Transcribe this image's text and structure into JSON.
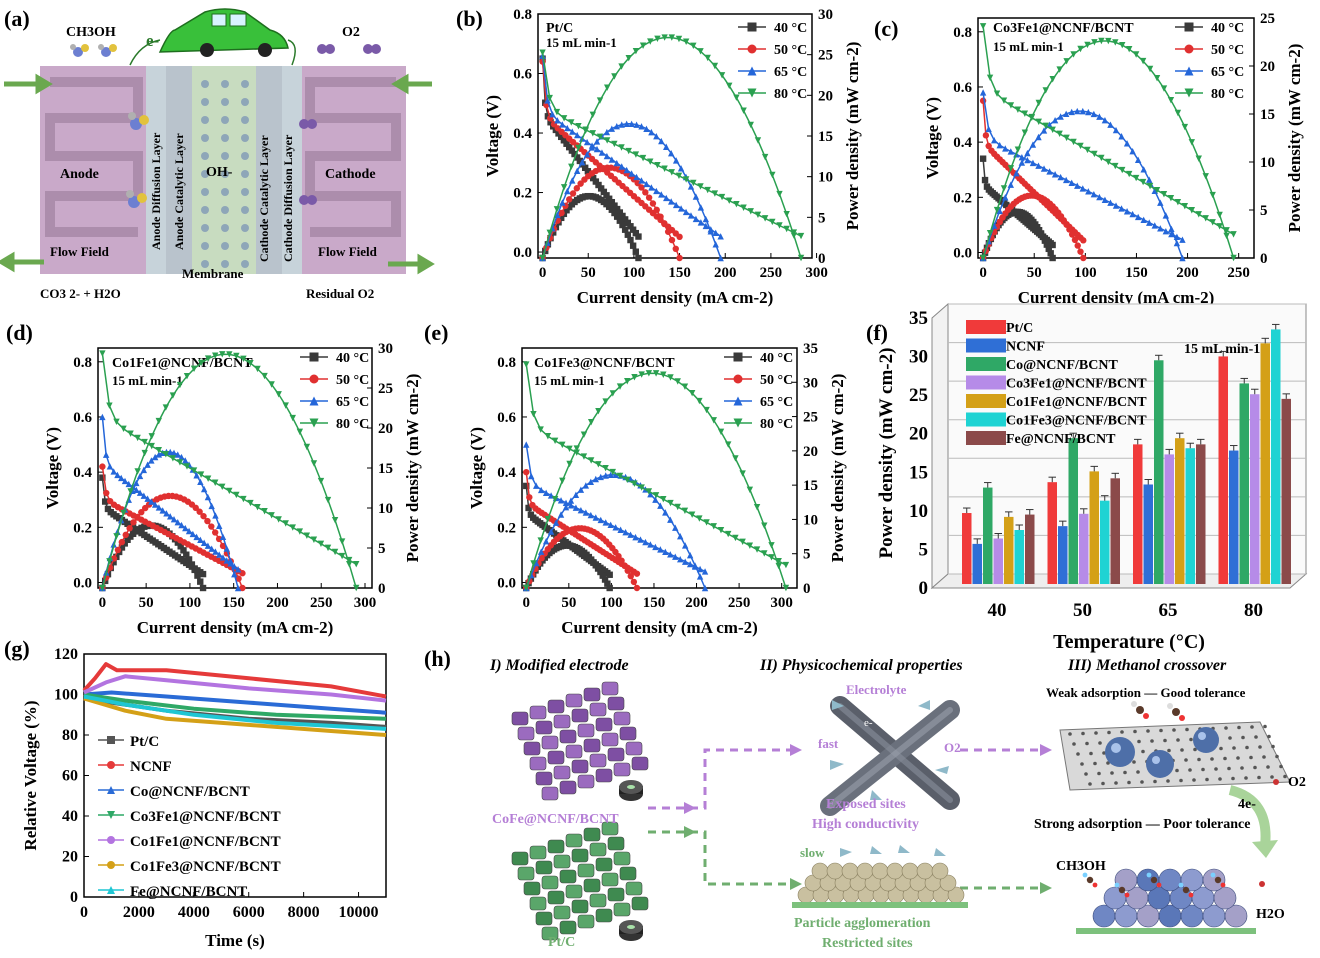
{
  "panel_labels": {
    "a": "(a)",
    "b": "(b)",
    "c": "(c)",
    "d": "(d)",
    "e": "(e)",
    "f": "(f)",
    "g": "(g)",
    "h": "(h)"
  },
  "schematic_a": {
    "methanol": "CH3OH",
    "electron": "e-",
    "oxygen": "O2",
    "anode": "Anode",
    "cathode": "Cathode",
    "oh": "OH-",
    "anode_flow": "Flow Field",
    "cathode_flow": "Flow Field",
    "membrane": "Membrane",
    "anode_diffusion": "Anode Diffusion Layer",
    "anode_catalytic": "Anode Catalytic Layer",
    "cathode_catalytic": "Cathode Catalytic Layer",
    "cathode_diffusion": "Cathode Diffusion Layer",
    "products": "CO3 2- + H2O",
    "residual": "Residual O2",
    "colors": {
      "flow": "#c9a9c9",
      "layer": "#c7d3da",
      "membrane": "#c8dcc0",
      "arrow": "#6aa84f",
      "car": "#39c03a"
    }
  },
  "legend_temps": [
    "40 °C",
    "50 °C",
    "65 °C",
    "80 °C"
  ],
  "temp_colors": [
    "#3a3a3a",
    "#e03030",
    "#2466d9",
    "#2aa050"
  ],
  "chart_data": [
    {
      "id": "b",
      "type": "line",
      "title": "Pt/C",
      "flow": "15 mL min-1",
      "xlabel": "Current density (mA cm-2)",
      "ylabel": "Voltage (V)",
      "y2label": "Power density (mW cm-2)",
      "xlim": [
        -5,
        295
      ],
      "ylim": [
        -0.02,
        0.8
      ],
      "y2lim": [
        0,
        30
      ],
      "xticks": [
        0,
        50,
        100,
        150,
        200,
        250,
        300
      ],
      "yticks": [
        0,
        0.2,
        0.4,
        0.6,
        0.8
      ],
      "y2ticks": [
        0,
        5,
        10,
        15,
        20,
        25,
        30
      ],
      "series": [
        {
          "name": "40 °C",
          "jmax": 105,
          "v0": 0.65,
          "pmax": 7.6
        },
        {
          "name": "50 °C",
          "jmax": 150,
          "v0": 0.64,
          "pmax": 11.1
        },
        {
          "name": "65 °C",
          "jmax": 195,
          "v0": 0.66,
          "pmax": 16.5
        },
        {
          "name": "80 °C",
          "jmax": 283,
          "v0": 0.67,
          "pmax": 27.1
        }
      ]
    },
    {
      "id": "c",
      "type": "line",
      "title": "Co3Fe1@NCNF/BCNT",
      "flow": "15 mL min-1",
      "xlabel": "Current density (mA cm-2)",
      "ylabel": "Voltage (V)",
      "y2label": "Power density (mW cm-2)",
      "xlim": [
        -5,
        265
      ],
      "ylim": [
        -0.02,
        0.85
      ],
      "y2lim": [
        0,
        25
      ],
      "xticks": [
        0,
        50,
        100,
        150,
        200,
        250
      ],
      "yticks": [
        0,
        0.2,
        0.4,
        0.6,
        0.8
      ],
      "y2ticks": [
        0,
        5,
        10,
        15,
        20,
        25
      ],
      "series": [
        {
          "name": "40 °C",
          "jmax": 68,
          "v0": 0.34,
          "pmax": 4.8
        },
        {
          "name": "50 °C",
          "jmax": 98,
          "v0": 0.55,
          "pmax": 6.5
        },
        {
          "name": "65 °C",
          "jmax": 195,
          "v0": 0.58,
          "pmax": 15.3
        },
        {
          "name": "80 °C",
          "jmax": 245,
          "v0": 0.82,
          "pmax": 22.6
        }
      ]
    },
    {
      "id": "d",
      "type": "line",
      "title": "Co1Fe1@NCNF/BCNT",
      "flow": "15 mL min-1",
      "xlabel": "Current density (mA cm-2)",
      "ylabel": "Voltage (V)",
      "y2label": "Power density (mW cm-2)",
      "xlim": [
        -5,
        308
      ],
      "ylim": [
        -0.02,
        0.85
      ],
      "y2lim": [
        0,
        30
      ],
      "xticks": [
        0,
        50,
        100,
        150,
        200,
        250,
        300
      ],
      "yticks": [
        0,
        0.2,
        0.4,
        0.6,
        0.8
      ],
      "y2ticks": [
        0,
        5,
        10,
        15,
        20,
        25,
        30
      ],
      "series": [
        {
          "name": "40 °C",
          "jmax": 115,
          "v0": 0.38,
          "pmax": 7.8
        },
        {
          "name": "50 °C",
          "jmax": 160,
          "v0": 0.42,
          "pmax": 11.5
        },
        {
          "name": "65 °C",
          "jmax": 155,
          "v0": 0.6,
          "pmax": 17
        },
        {
          "name": "80 °C",
          "jmax": 290,
          "v0": 0.83,
          "pmax": 29.2
        }
      ]
    },
    {
      "id": "e",
      "type": "line",
      "title": "Co1Fe3@NCNF/BCNT",
      "flow": "15 mL min-1",
      "xlabel": "Current density (mA cm-2)",
      "ylabel": "Voltage (V)",
      "y2label": "Power density (mW cm-2)",
      "xlim": [
        -5,
        318
      ],
      "ylim": [
        -0.02,
        0.85
      ],
      "y2lim": [
        0,
        35
      ],
      "xticks": [
        0,
        50,
        100,
        150,
        200,
        250,
        300
      ],
      "yticks": [
        0,
        0.2,
        0.4,
        0.6,
        0.8
      ],
      "y2ticks": [
        0,
        5,
        10,
        15,
        20,
        25,
        30,
        35
      ],
      "series": [
        {
          "name": "40 °C",
          "jmax": 98,
          "v0": 0.35,
          "pmax": 6.2
        },
        {
          "name": "50 °C",
          "jmax": 130,
          "v0": 0.4,
          "pmax": 8.7
        },
        {
          "name": "65 °C",
          "jmax": 210,
          "v0": 0.5,
          "pmax": 16.5
        },
        {
          "name": "80 °C",
          "jmax": 305,
          "v0": 0.79,
          "pmax": 31.3
        }
      ]
    },
    {
      "id": "f",
      "type": "bar",
      "flow": "15 mL min-1",
      "xlabel": "Temperature (°C)",
      "ylabel": "Power density (mW cm-2)",
      "categories": [
        "40",
        "50",
        "65",
        "80"
      ],
      "ylim": [
        0,
        35
      ],
      "yticks": [
        0,
        5,
        10,
        15,
        20,
        25,
        30,
        35
      ],
      "series": [
        {
          "name": "Pt/C",
          "color": "#f03a3a",
          "values": [
            9.2,
            13.2,
            18.1,
            29.5
          ]
        },
        {
          "name": "NCNF",
          "color": "#2f6fd6",
          "values": [
            5.2,
            7.5,
            12.9,
            17.3
          ]
        },
        {
          "name": "Co@NCNF/BCNT",
          "color": "#2fa866",
          "values": [
            12.5,
            18.9,
            29.0,
            26.0
          ]
        },
        {
          "name": "Co3Fe1@NCNF/BCNT",
          "color": "#b68be8",
          "values": [
            5.9,
            9.1,
            16.8,
            24.6
          ]
        },
        {
          "name": "Co1Fe1@NCNF/BCNT",
          "color": "#d4a017",
          "values": [
            8.7,
            14.6,
            18.9,
            31.2
          ]
        },
        {
          "name": "Co1Fe3@NCNF/BCNT",
          "color": "#1fd3d3",
          "values": [
            7.0,
            10.8,
            17.6,
            33.0
          ]
        },
        {
          "name": "Fe@NCNF/BCNT",
          "color": "#8b4a4a",
          "values": [
            9.0,
            13.7,
            18.1,
            24.0
          ]
        }
      ]
    },
    {
      "id": "g",
      "type": "line",
      "xlabel": "Time (s)",
      "ylabel": "Relative Voltage (%)",
      "xlim": [
        0,
        11000
      ],
      "ylim": [
        0,
        120
      ],
      "xticks": [
        0,
        2000,
        4000,
        6000,
        8000,
        10000
      ],
      "yticks": [
        0,
        20,
        40,
        60,
        80,
        100,
        120
      ],
      "series": [
        {
          "name": "Pt/C",
          "color": "#555555",
          "points": [
            [
              0,
              100
            ],
            [
              500,
              97
            ],
            [
              3000,
              92
            ],
            [
              6000,
              88
            ],
            [
              9000,
              86
            ],
            [
              11000,
              84
            ]
          ]
        },
        {
          "name": "NCNF",
          "color": "#e53a3a",
          "points": [
            [
              0,
              102
            ],
            [
              400,
              108
            ],
            [
              800,
              115
            ],
            [
              1200,
              112
            ],
            [
              3000,
              112
            ],
            [
              6000,
              108
            ],
            [
              9000,
              104
            ],
            [
              11000,
              99
            ]
          ]
        },
        {
          "name": "Co@NCNF/BCNT",
          "color": "#2a6bd6",
          "points": [
            [
              0,
              100
            ],
            [
              1000,
              101
            ],
            [
              3000,
              99
            ],
            [
              6000,
              96
            ],
            [
              9000,
              93
            ],
            [
              11000,
              91
            ]
          ]
        },
        {
          "name": "Co3Fe1@NCNF/BCNT",
          "color": "#2fa866",
          "points": [
            [
              0,
              100
            ],
            [
              1500,
              97
            ],
            [
              4000,
              93
            ],
            [
              7000,
              90
            ],
            [
              11000,
              88
            ]
          ]
        },
        {
          "name": "Co1Fe1@NCNF/BCNT",
          "color": "#b374e0",
          "points": [
            [
              0,
              101
            ],
            [
              800,
              106
            ],
            [
              1500,
              109
            ],
            [
              3000,
              107
            ],
            [
              6000,
              103
            ],
            [
              9000,
              100
            ],
            [
              11000,
              97
            ]
          ]
        },
        {
          "name": "Co1Fe3@NCNF/BCNT",
          "color": "#d4a017",
          "points": [
            [
              0,
              98
            ],
            [
              1500,
              92
            ],
            [
              3000,
              88
            ],
            [
              6000,
              85
            ],
            [
              9000,
              82
            ],
            [
              11000,
              80
            ]
          ]
        },
        {
          "name": "Fe@NCNF/BCNT",
          "color": "#1fc6d3",
          "points": [
            [
              0,
              99
            ],
            [
              1500,
              95
            ],
            [
              4000,
              90
            ],
            [
              7000,
              86
            ],
            [
              11000,
              83
            ]
          ]
        }
      ]
    }
  ],
  "legend_f": [
    "Pt/C",
    "NCNF",
    "Co@NCNF/BCNT",
    "Co3Fe1@NCNF/BCNT",
    "Co1Fe1@NCNF/BCNT",
    "Co1Fe3@NCNF/BCNT",
    "Fe@NCNF/BCNT"
  ],
  "legend_g": [
    "Pt/C",
    "NCNF",
    "Co@NCNF/BCNT",
    "Co3Fe1@NCNF/BCNT",
    "Co1Fe1@NCNF/BCNT",
    "Co1Fe3@NCNF/BCNT",
    "Fe@NCNF/BCNT"
  ],
  "scheme_h": {
    "heading1": "I) Modified electrode",
    "heading2": "II) Physicochemical properties",
    "heading3": "III) Methanol crossover",
    "cofe_label": "CoFe@NCNF/BCNT",
    "ptc_label": "Pt/C",
    "electrolyte": "Electrolyte",
    "fast": "fast",
    "o2_mid": "O2",
    "e_a": "e-",
    "e_b": "e-",
    "exposed": "Exposed  sites",
    "conductivity": "High conductivity",
    "slow": "slow",
    "agglomeration": "Particle agglomeration",
    "restricted": "Restricted sites",
    "weak": "Weak adsorption — Good tolerance",
    "strong": "Strong adsorption — Poor tolerance",
    "o2_right": "O2",
    "four_e": "4e-",
    "ch3oh": "CH3OH",
    "h2o": "H2O",
    "colors": {
      "purple": "#9b6bbf",
      "green": "#5aa66a",
      "text_purple": "#b57fd6",
      "text_green": "#6fae6f"
    }
  }
}
